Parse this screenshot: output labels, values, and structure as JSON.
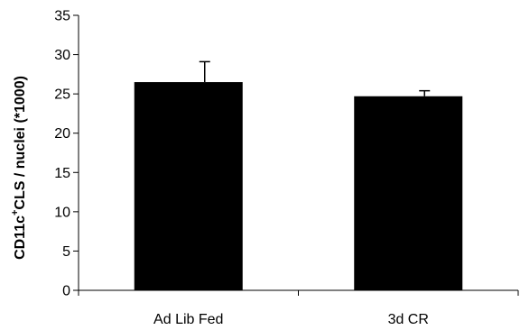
{
  "chart_data": {
    "type": "bar",
    "title": "",
    "xlabel": "",
    "ylabel": {
      "prefix": "CD11c",
      "superscript": "+",
      "suffix": "CLS / nuclei (*1000)"
    },
    "categories": [
      "Ad Lib Fed",
      "3d CR"
    ],
    "values": [
      26.5,
      24.7
    ],
    "error_bars": [
      2.6,
      0.7
    ],
    "ylim": [
      0,
      35
    ],
    "yticks": [
      "0",
      "5",
      "10",
      "15",
      "20",
      "25",
      "30",
      "35"
    ],
    "grid": false,
    "legend": "none",
    "bar_color": "#000000"
  }
}
